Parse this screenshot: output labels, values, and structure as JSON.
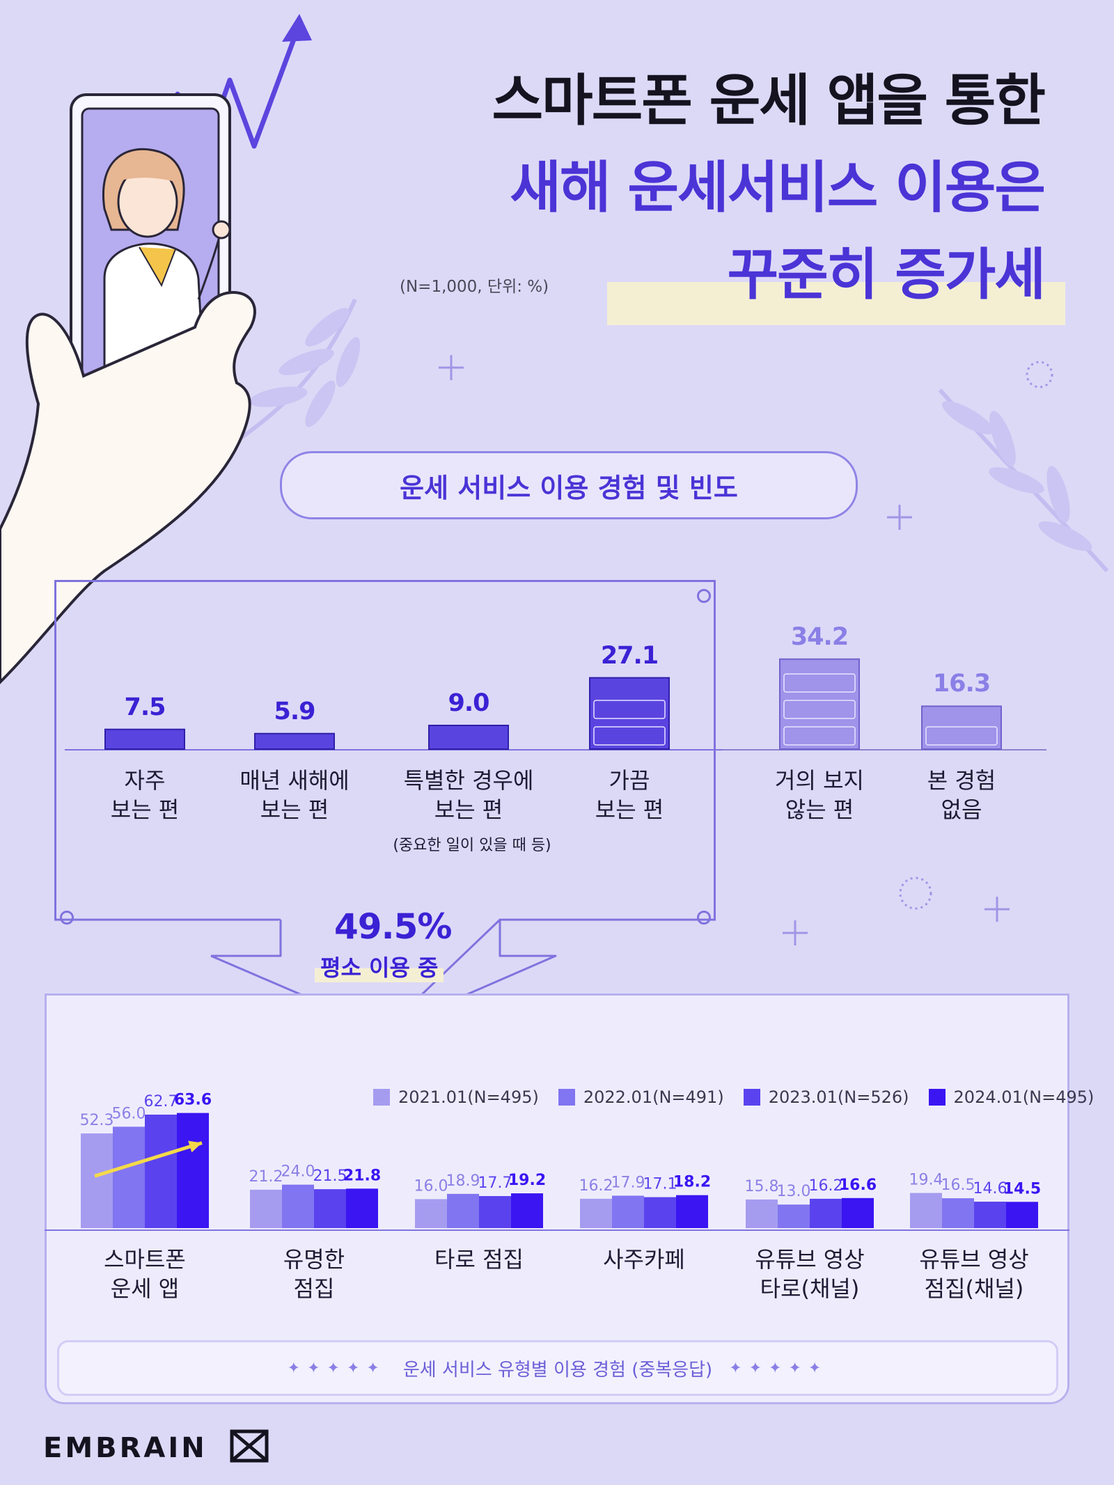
{
  "title": {
    "line1": "스마트폰 운세 앱을 통한",
    "line2": "새해 운세서비스 이용은",
    "line3": "꾸준히 증가세"
  },
  "unit_note": "(N=1,000, 단위: %)",
  "section_title": "운세 서비스 이용 경험 및 빈도",
  "callout": {
    "value": "49.5%",
    "label": "평소 이용 중"
  },
  "footer_note": "운세 서비스 유형별 이용 경험 (중복응답)",
  "brand": "EMBRAIN",
  "colors": {
    "background": "#dcd9f7",
    "accent": "#4a34d6",
    "frequency_bar": "#5a44e0",
    "nonuser_bar": "#9f93ea",
    "year_2021": "#a59cf0",
    "year_2022": "#8175f1",
    "year_2023": "#5a43ee",
    "year_2024": "#3b15f2"
  },
  "chart_data": [
    {
      "type": "bar",
      "title": "운세 서비스 이용 경험 및 빈도",
      "categories": [
        [
          "자주",
          "보는 편"
        ],
        [
          "매년 새해에",
          "보는 편"
        ],
        [
          "특별한 경우에",
          "보는 편"
        ],
        [
          "가끔",
          "보는 편"
        ],
        [
          "거의 보지",
          "않는 편"
        ],
        [
          "본 경험",
          "없음"
        ]
      ],
      "category_note": "(중요한 일이 있을 때 등)",
      "values": [
        7.5,
        5.9,
        9.0,
        27.1,
        34.2,
        16.3
      ],
      "value_labels": [
        "7.5",
        "5.9",
        "9.0",
        "27.1",
        "34.2",
        "16.3"
      ],
      "ylim": [
        0,
        40
      ],
      "grid": false
    },
    {
      "type": "bar",
      "title": "운세 서비스 유형별 이용 경험 (중복응답)",
      "categories": [
        [
          "스마트폰",
          "운세 앱"
        ],
        [
          "유명한",
          "점집"
        ],
        [
          "타로 점집"
        ],
        [
          "사주카페"
        ],
        [
          "유튜브 영상",
          "타로(채널)"
        ],
        [
          "유튜브 영상",
          "점집(채널)"
        ]
      ],
      "series": [
        {
          "name": "2021.01(N=495)",
          "values": [
            52.3,
            21.2,
            16.0,
            16.2,
            15.8,
            19.4
          ],
          "labels": [
            "52.3",
            "21.2",
            "16.0",
            "16.2",
            "15.8",
            "19.4"
          ]
        },
        {
          "name": "2022.01(N=491)",
          "values": [
            56.0,
            24.0,
            18.9,
            17.9,
            13.0,
            16.5
          ],
          "labels": [
            "56.0",
            "24.0",
            "18.9",
            "17.9",
            "13.0",
            "16.5"
          ]
        },
        {
          "name": "2023.01(N=526)",
          "values": [
            62.7,
            21.5,
            17.7,
            17.1,
            16.2,
            14.6
          ],
          "labels": [
            "62.7",
            "21.5",
            "17.7",
            "17.1",
            "16.2",
            "14.6"
          ]
        },
        {
          "name": "2024.01(N=495)",
          "values": [
            63.6,
            21.8,
            19.2,
            18.2,
            16.6,
            14.5
          ],
          "labels": [
            "63.6",
            "21.8",
            "19.2",
            "18.2",
            "16.6",
            "14.5"
          ]
        }
      ],
      "ylim": [
        0,
        70
      ],
      "legend": "top-right",
      "grid": false
    }
  ]
}
